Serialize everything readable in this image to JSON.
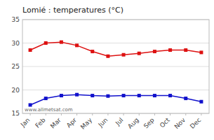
{
  "chart_data": {
    "type": "line",
    "title": "Lomié : temperatures (°C)",
    "categories": [
      "Jan",
      "Feb",
      "Mar",
      "Apr",
      "May",
      "Jun",
      "Jul",
      "Aug",
      "Sep",
      "Oct",
      "Nov",
      "Dec"
    ],
    "series": [
      {
        "color": "#dd1111",
        "marker": "square",
        "values": [
          28.5,
          30.0,
          30.2,
          29.5,
          28.2,
          27.2,
          27.5,
          27.8,
          28.2,
          28.5,
          28.5,
          28.0
        ]
      },
      {
        "color": "#1111cc",
        "marker": "square",
        "values": [
          16.8,
          18.2,
          18.8,
          19.0,
          18.8,
          18.7,
          18.8,
          18.8,
          18.8,
          18.8,
          18.2,
          17.5
        ]
      }
    ],
    "ylim": [
      15,
      35
    ],
    "yticks": [
      15,
      20,
      25,
      30,
      35
    ],
    "grid": true,
    "annotations": [
      "www.allmetsat.com"
    ]
  }
}
